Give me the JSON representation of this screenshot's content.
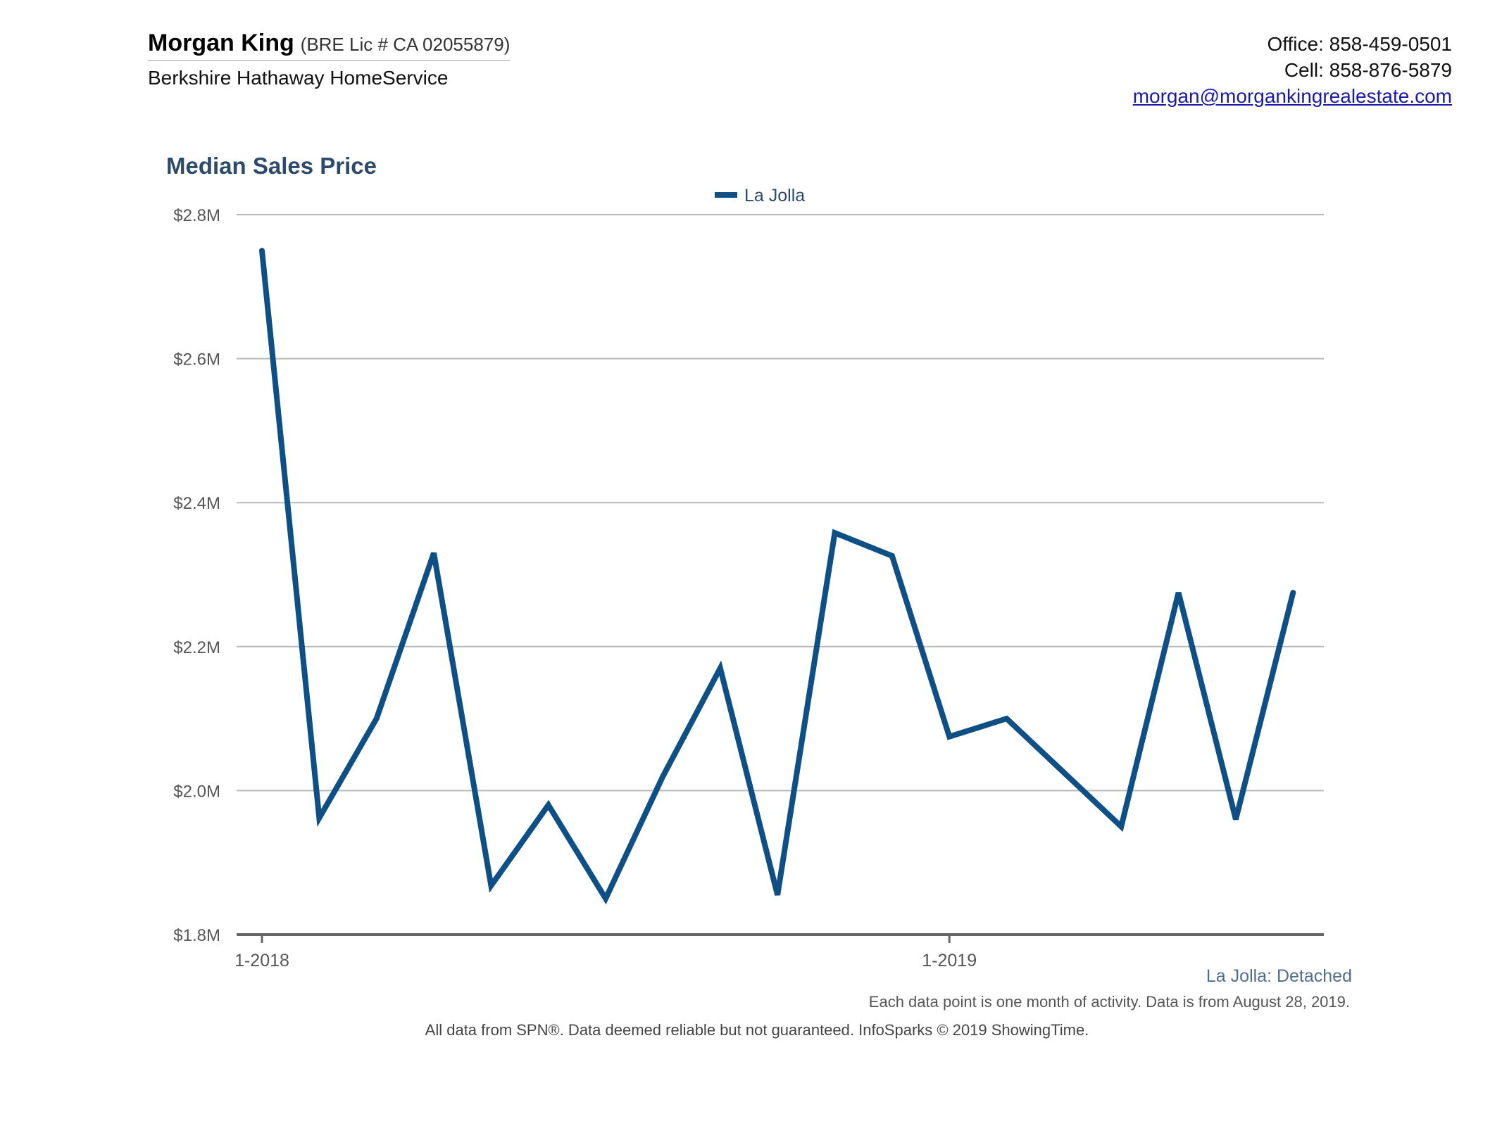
{
  "header": {
    "agent_name": "Morgan King",
    "agent_license": "(BRE Lic # CA 02055879)",
    "company": "Berkshire Hathaway HomeService",
    "office": "Office: 858-459-0501",
    "cell": "Cell: 858-876-5879",
    "email": "morgan@morgankingrealestate.com"
  },
  "chart_data": {
    "type": "line",
    "title": "Median Sales Price",
    "legend": "top-center",
    "grid": true,
    "ylim": [
      1800000,
      2800000
    ],
    "yticks": [
      1800000,
      2000000,
      2200000,
      2400000,
      2600000,
      2800000
    ],
    "ytick_labels": [
      "$1.8M",
      "$2.0M",
      "$2.2M",
      "$2.4M",
      "$2.6M",
      "$2.8M"
    ],
    "xtick_labels": [
      {
        "label": "1-2018",
        "index": 0
      },
      {
        "label": "1-2019",
        "index": 12
      }
    ],
    "x": [
      "1-2018",
      "2-2018",
      "3-2018",
      "4-2018",
      "5-2018",
      "6-2018",
      "7-2018",
      "8-2018",
      "9-2018",
      "10-2018",
      "11-2018",
      "12-2018",
      "1-2019",
      "2-2019",
      "3-2019",
      "4-2019",
      "5-2019",
      "6-2019",
      "7-2019"
    ],
    "series": [
      {
        "name": "La Jolla",
        "color": "#0e4f85",
        "values": [
          2750000,
          1962000,
          2100000,
          2330000,
          1868000,
          1980000,
          1850000,
          2020000,
          2170000,
          1855000,
          2358000,
          2326000,
          2075000,
          2100000,
          2025000,
          1950000,
          2275000,
          1960000,
          2275000
        ]
      }
    ]
  },
  "footer": {
    "series_note": "La Jolla: Detached",
    "data_note": "Each data point is one month of activity. Data is from August 28, 2019.",
    "source": "All data from SPN®. Data deemed reliable but not guaranteed. InfoSparks © 2019 ShowingTime."
  }
}
